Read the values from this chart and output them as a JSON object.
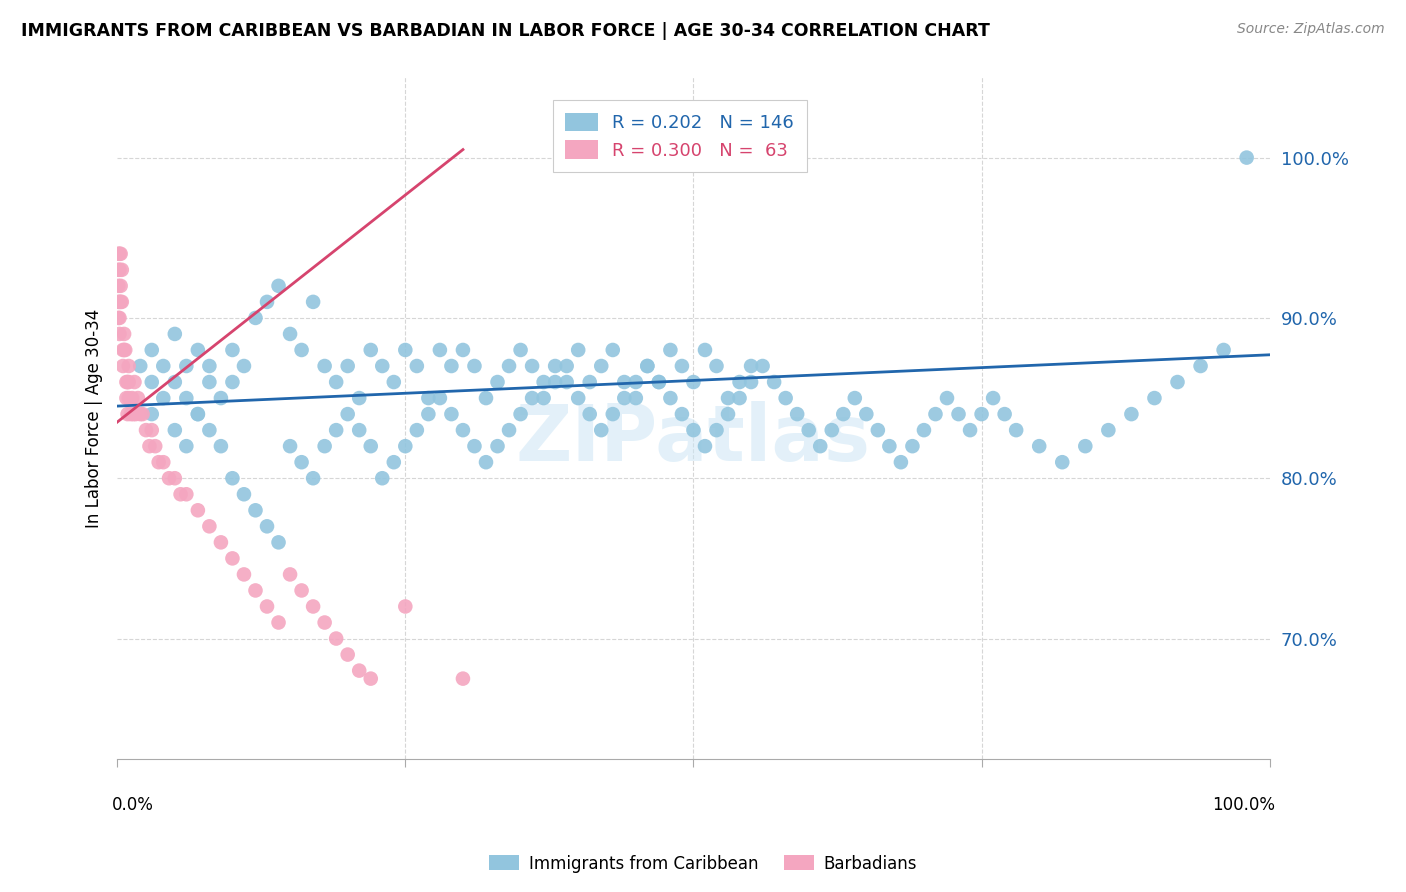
{
  "title": "IMMIGRANTS FROM CARIBBEAN VS BARBADIAN IN LABOR FORCE | AGE 30-34 CORRELATION CHART",
  "source": "Source: ZipAtlas.com",
  "ylabel": "In Labor Force | Age 30-34",
  "xlim": [
    0.0,
    1.0
  ],
  "ylim": [
    0.625,
    1.05
  ],
  "ytick_values": [
    0.7,
    0.8,
    0.9,
    1.0
  ],
  "blue_color": "#92c5de",
  "pink_color": "#f4a6c0",
  "blue_line_color": "#2166ac",
  "pink_line_color": "#d6446e",
  "blue_R": 0.202,
  "blue_N": 146,
  "pink_R": 0.3,
  "pink_N": 63,
  "legend_label_blue": "Immigrants from Caribbean",
  "legend_label_pink": "Barbadians",
  "watermark": "ZIPatlas",
  "blue_scatter_x": [
    0.02,
    0.03,
    0.03,
    0.04,
    0.05,
    0.05,
    0.06,
    0.06,
    0.07,
    0.07,
    0.08,
    0.08,
    0.09,
    0.1,
    0.1,
    0.11,
    0.12,
    0.13,
    0.14,
    0.15,
    0.16,
    0.17,
    0.18,
    0.19,
    0.2,
    0.21,
    0.22,
    0.23,
    0.24,
    0.25,
    0.26,
    0.27,
    0.28,
    0.29,
    0.3,
    0.31,
    0.32,
    0.33,
    0.34,
    0.35,
    0.36,
    0.37,
    0.38,
    0.39,
    0.4,
    0.41,
    0.42,
    0.43,
    0.44,
    0.45,
    0.46,
    0.47,
    0.48,
    0.49,
    0.5,
    0.51,
    0.52,
    0.53,
    0.54,
    0.55,
    0.03,
    0.04,
    0.05,
    0.06,
    0.07,
    0.08,
    0.09,
    0.1,
    0.11,
    0.12,
    0.13,
    0.14,
    0.15,
    0.16,
    0.17,
    0.18,
    0.19,
    0.2,
    0.21,
    0.22,
    0.23,
    0.24,
    0.25,
    0.26,
    0.27,
    0.28,
    0.29,
    0.3,
    0.31,
    0.32,
    0.33,
    0.34,
    0.35,
    0.36,
    0.37,
    0.38,
    0.39,
    0.4,
    0.41,
    0.42,
    0.43,
    0.44,
    0.45,
    0.46,
    0.47,
    0.48,
    0.49,
    0.5,
    0.51,
    0.52,
    0.53,
    0.54,
    0.55,
    0.56,
    0.57,
    0.58,
    0.59,
    0.6,
    0.61,
    0.62,
    0.63,
    0.64,
    0.65,
    0.66,
    0.67,
    0.68,
    0.69,
    0.7,
    0.71,
    0.72,
    0.73,
    0.74,
    0.75,
    0.76,
    0.77,
    0.78,
    0.8,
    0.82,
    0.84,
    0.86,
    0.88,
    0.9,
    0.92,
    0.94,
    0.96,
    0.98
  ],
  "blue_scatter_y": [
    0.87,
    0.86,
    0.88,
    0.87,
    0.89,
    0.86,
    0.87,
    0.85,
    0.88,
    0.84,
    0.87,
    0.86,
    0.85,
    0.88,
    0.86,
    0.87,
    0.9,
    0.91,
    0.92,
    0.89,
    0.88,
    0.91,
    0.87,
    0.86,
    0.87,
    0.85,
    0.88,
    0.87,
    0.86,
    0.88,
    0.87,
    0.85,
    0.88,
    0.87,
    0.88,
    0.87,
    0.85,
    0.86,
    0.87,
    0.88,
    0.87,
    0.85,
    0.86,
    0.87,
    0.88,
    0.86,
    0.87,
    0.88,
    0.86,
    0.85,
    0.87,
    0.86,
    0.88,
    0.87,
    0.86,
    0.88,
    0.87,
    0.85,
    0.86,
    0.87,
    0.84,
    0.85,
    0.83,
    0.82,
    0.84,
    0.83,
    0.82,
    0.8,
    0.79,
    0.78,
    0.77,
    0.76,
    0.82,
    0.81,
    0.8,
    0.82,
    0.83,
    0.84,
    0.83,
    0.82,
    0.8,
    0.81,
    0.82,
    0.83,
    0.84,
    0.85,
    0.84,
    0.83,
    0.82,
    0.81,
    0.82,
    0.83,
    0.84,
    0.85,
    0.86,
    0.87,
    0.86,
    0.85,
    0.84,
    0.83,
    0.84,
    0.85,
    0.86,
    0.87,
    0.86,
    0.85,
    0.84,
    0.83,
    0.82,
    0.83,
    0.84,
    0.85,
    0.86,
    0.87,
    0.86,
    0.85,
    0.84,
    0.83,
    0.82,
    0.83,
    0.84,
    0.85,
    0.84,
    0.83,
    0.82,
    0.81,
    0.82,
    0.83,
    0.84,
    0.85,
    0.84,
    0.83,
    0.84,
    0.85,
    0.84,
    0.83,
    0.82,
    0.81,
    0.82,
    0.83,
    0.84,
    0.85,
    0.86,
    0.87,
    0.88,
    1.0
  ],
  "pink_scatter_x": [
    0.001,
    0.001,
    0.001,
    0.001,
    0.001,
    0.002,
    0.002,
    0.002,
    0.002,
    0.002,
    0.003,
    0.003,
    0.003,
    0.004,
    0.004,
    0.005,
    0.005,
    0.006,
    0.006,
    0.007,
    0.008,
    0.008,
    0.009,
    0.009,
    0.01,
    0.01,
    0.01,
    0.012,
    0.013,
    0.014,
    0.015,
    0.016,
    0.018,
    0.02,
    0.022,
    0.025,
    0.028,
    0.03,
    0.033,
    0.036,
    0.04,
    0.045,
    0.05,
    0.055,
    0.06,
    0.07,
    0.08,
    0.09,
    0.1,
    0.11,
    0.12,
    0.13,
    0.14,
    0.15,
    0.16,
    0.17,
    0.18,
    0.19,
    0.2,
    0.21,
    0.22,
    0.25,
    0.3
  ],
  "pink_scatter_y": [
    0.94,
    0.93,
    0.92,
    0.91,
    0.9,
    0.94,
    0.93,
    0.91,
    0.9,
    0.89,
    0.94,
    0.92,
    0.91,
    0.93,
    0.91,
    0.88,
    0.87,
    0.89,
    0.88,
    0.88,
    0.86,
    0.85,
    0.84,
    0.86,
    0.87,
    0.86,
    0.85,
    0.84,
    0.85,
    0.84,
    0.86,
    0.84,
    0.85,
    0.84,
    0.84,
    0.83,
    0.82,
    0.83,
    0.82,
    0.81,
    0.81,
    0.8,
    0.8,
    0.79,
    0.79,
    0.78,
    0.77,
    0.76,
    0.75,
    0.74,
    0.73,
    0.72,
    0.71,
    0.74,
    0.73,
    0.72,
    0.71,
    0.7,
    0.69,
    0.68,
    0.675,
    0.72,
    0.675
  ],
  "blue_trend_x": [
    0.0,
    1.0
  ],
  "blue_trend_y": [
    0.845,
    0.877
  ],
  "pink_trend_x": [
    0.0,
    0.3
  ],
  "pink_trend_y": [
    0.835,
    1.005
  ]
}
